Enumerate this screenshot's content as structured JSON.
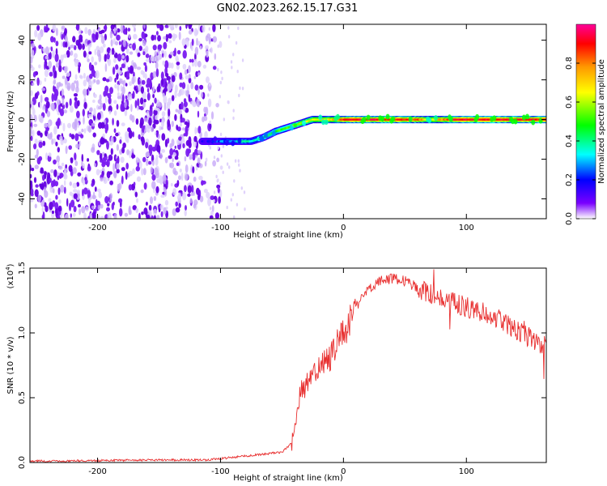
{
  "title": "GN02.2023.262.15.17.G31",
  "chart_data": [
    {
      "type": "heatmap",
      "xlabel": "Height of straight line (km)",
      "ylabel": "Frequency (Hz)",
      "xlim": [
        -255,
        165
      ],
      "ylim": [
        -50,
        48
      ],
      "xticks": [
        -200,
        -100,
        0,
        100
      ],
      "yticks": [
        -40,
        -20,
        0,
        20,
        40
      ],
      "colorbar": {
        "label": "Normalized spectral amplitude",
        "range": [
          0,
          1
        ],
        "ticks": [
          "0.0",
          "0.2",
          "0.4",
          "0.6",
          "0.8"
        ],
        "colormap": [
          "#ffffff",
          "#6a00ff",
          "#0000ff",
          "#00ffff",
          "#00ff00",
          "#ffff00",
          "#ff9900",
          "#ff0000",
          "#ff0099"
        ]
      },
      "noise_region_x": [
        -255,
        -105
      ],
      "ridge": {
        "x": [
          -115,
          -100,
          -90,
          -75,
          -65,
          -55,
          -45,
          -35,
          -25,
          -15,
          -5,
          0,
          20,
          40,
          60,
          70,
          80,
          90,
          100,
          120,
          140,
          165
        ],
        "freq": [
          -11,
          -11,
          -11,
          -11,
          -9,
          -6,
          -4,
          -2,
          0,
          0,
          0,
          0,
          0,
          0,
          0,
          0,
          0,
          0,
          0,
          0,
          0,
          0
        ],
        "amplitude": [
          0.2,
          0.3,
          0.35,
          0.45,
          0.5,
          0.55,
          0.6,
          0.65,
          0.7,
          0.75,
          0.8,
          0.95,
          0.97,
          0.95,
          0.9,
          0.7,
          0.85,
          0.95,
          0.97,
          0.97,
          0.96,
          0.95
        ]
      },
      "grid": false
    },
    {
      "type": "line",
      "xlabel": "Height of straight line (km)",
      "ylabel": "SNR (10 * v/v)",
      "y_multiplier_label": "(x10",
      "y_multiplier_exp": "4",
      "xlim": [
        -255,
        165
      ],
      "ylim": [
        0,
        1.5
      ],
      "xticks": [
        -200,
        -100,
        0,
        100
      ],
      "yticks": [
        "0.0",
        "0.5",
        "1.0",
        "1.5"
      ],
      "series": [
        {
          "color": "#e83030",
          "x": [
            -255,
            -200,
            -150,
            -110,
            -90,
            -70,
            -50,
            -42,
            -38,
            -35,
            -30,
            -20,
            -10,
            0,
            10,
            20,
            30,
            40,
            50,
            60,
            70,
            80,
            90,
            100,
            110,
            120,
            130,
            140,
            150,
            165
          ],
          "y": [
            0.01,
            0.015,
            0.02,
            0.02,
            0.04,
            0.06,
            0.08,
            0.15,
            0.35,
            0.55,
            0.62,
            0.72,
            0.82,
            1.0,
            1.2,
            1.33,
            1.4,
            1.42,
            1.4,
            1.35,
            1.3,
            1.27,
            1.23,
            1.2,
            1.17,
            1.14,
            1.08,
            1.02,
            0.97,
            0.9
          ]
        }
      ],
      "grid": false
    }
  ]
}
